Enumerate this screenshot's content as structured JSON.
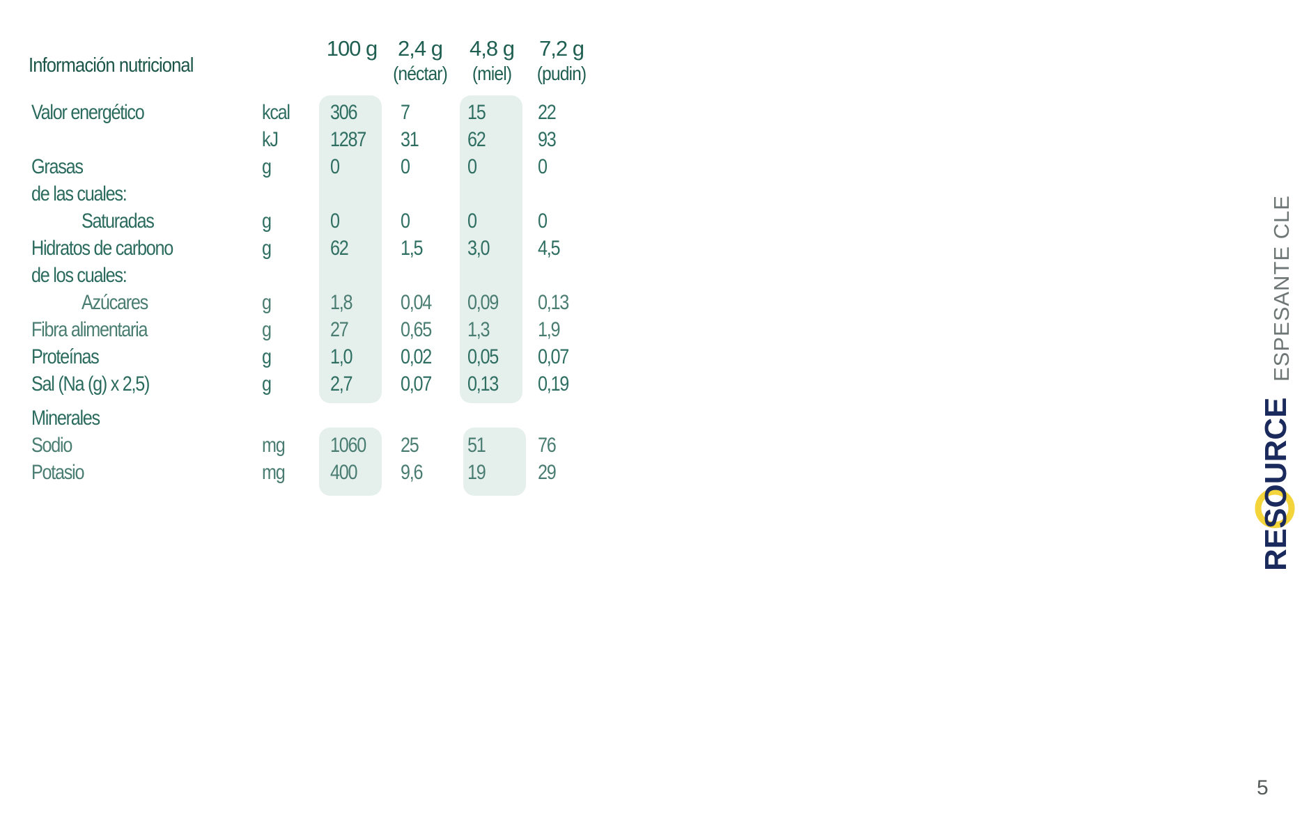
{
  "table": {
    "title": "Información nutricional",
    "columns": [
      {
        "amount": "100 g",
        "sub": ""
      },
      {
        "amount": "2,4 g",
        "sub": "(néctar)"
      },
      {
        "amount": "4,8 g",
        "sub": "(miel)"
      },
      {
        "amount": "7,2 g",
        "sub": "(pudin)"
      }
    ],
    "rows": [
      {
        "label": "Valor energético",
        "unit": "kcal",
        "values": [
          "306",
          "7",
          "15",
          "22"
        ]
      },
      {
        "label": "",
        "unit": "kJ",
        "values": [
          "1287",
          "31",
          "62",
          "93"
        ]
      },
      {
        "label": "Grasas",
        "unit": "g",
        "values": [
          "0",
          "0",
          "0",
          "0"
        ]
      },
      {
        "label": "de las cuales:",
        "unit": "",
        "values": [
          "",
          "",
          "",
          ""
        ]
      },
      {
        "label": "Saturadas",
        "unit": "g",
        "values": [
          "0",
          "0",
          "0",
          "0"
        ],
        "indent": true
      },
      {
        "label": "Hidratos de carbono",
        "unit": "g",
        "values": [
          "62",
          "1,5",
          "3,0",
          "4,5"
        ]
      },
      {
        "label": "de los cuales:",
        "unit": "",
        "values": [
          "",
          "",
          "",
          ""
        ]
      },
      {
        "label": "Azúcares",
        "unit": "g",
        "values": [
          "1,8",
          "0,04",
          "0,09",
          "0,13"
        ],
        "indent": true,
        "dim": true
      },
      {
        "label": "Fibra alimentaria",
        "unit": "g",
        "values": [
          "27",
          "0,65",
          "1,3",
          "1,9"
        ],
        "dim": true
      },
      {
        "label": "Proteínas",
        "unit": "g",
        "values": [
          "1,0",
          "0,02",
          "0,05",
          "0,07"
        ]
      },
      {
        "label": "Sal (Na (g) x 2,5)",
        "unit": "g",
        "values": [
          "2,7",
          "0,07",
          "0,13",
          "0,19"
        ]
      }
    ],
    "minerals_label": "Minerales",
    "mineral_rows": [
      {
        "label": "Sodio",
        "unit": "mg",
        "values": [
          "1060",
          "25",
          "51",
          "76"
        ],
        "dim": true
      },
      {
        "label": "Potasio",
        "unit": "mg",
        "values": [
          "400",
          "9,6",
          "19",
          "29"
        ],
        "dim": true
      }
    ]
  },
  "brand": {
    "logo_text": "RESOURCE",
    "product": "ESPESANTE CLEAR",
    "navy": "#1b2a5c",
    "yellow": "#f3d43a",
    "grey": "#6e7675"
  },
  "page_number": "5"
}
